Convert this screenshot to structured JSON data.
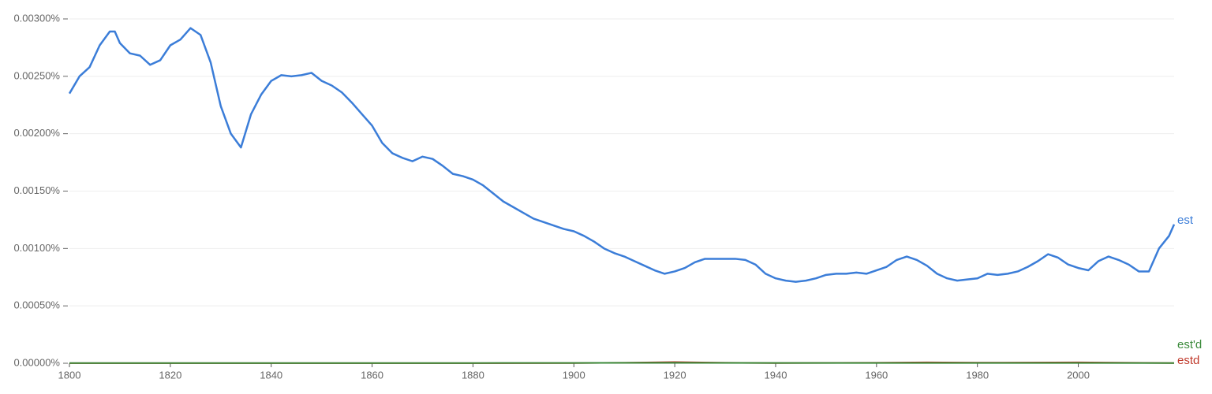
{
  "chart_data": {
    "type": "line",
    "xlim": [
      1800,
      2019
    ],
    "xticks": [
      1800,
      1820,
      1840,
      1860,
      1880,
      1900,
      1920,
      1940,
      1960,
      1980,
      2000
    ],
    "ylim": [
      0,
      0.003
    ],
    "yticks": [
      {
        "value": 0,
        "label": "0.00000%"
      },
      {
        "value": 0.0005,
        "label": "0.00050%"
      },
      {
        "value": 0.001,
        "label": "0.00100%"
      },
      {
        "value": 0.0015,
        "label": "0.00150%"
      },
      {
        "value": 0.002,
        "label": "0.00200%"
      },
      {
        "value": 0.0025,
        "label": "0.00250%"
      },
      {
        "value": 0.003,
        "label": "0.00300%"
      }
    ],
    "grid": true,
    "series": [
      {
        "name": "est",
        "color": "#3b7dd8",
        "x": [
          1800,
          1802,
          1804,
          1806,
          1808,
          1809,
          1810,
          1812,
          1814,
          1816,
          1818,
          1820,
          1822,
          1824,
          1826,
          1828,
          1830,
          1832,
          1834,
          1836,
          1838,
          1840,
          1842,
          1844,
          1846,
          1848,
          1850,
          1852,
          1854,
          1856,
          1858,
          1860,
          1862,
          1864,
          1866,
          1868,
          1870,
          1872,
          1874,
          1876,
          1878,
          1880,
          1882,
          1884,
          1886,
          1888,
          1890,
          1892,
          1894,
          1896,
          1898,
          1900,
          1902,
          1904,
          1906,
          1908,
          1910,
          1912,
          1914,
          1916,
          1918,
          1920,
          1922,
          1924,
          1926,
          1928,
          1930,
          1932,
          1934,
          1936,
          1938,
          1940,
          1942,
          1944,
          1946,
          1948,
          1950,
          1952,
          1954,
          1956,
          1958,
          1960,
          1962,
          1964,
          1966,
          1968,
          1970,
          1972,
          1974,
          1976,
          1978,
          1980,
          1982,
          1984,
          1986,
          1988,
          1990,
          1992,
          1994,
          1996,
          1998,
          2000,
          2002,
          2004,
          2006,
          2008,
          2010,
          2012,
          2014,
          2016,
          2018,
          2019
        ],
        "values": [
          0.00235,
          0.0025,
          0.00258,
          0.00277,
          0.00289,
          0.00289,
          0.00279,
          0.0027,
          0.00268,
          0.0026,
          0.00264,
          0.00277,
          0.00282,
          0.00292,
          0.00286,
          0.00262,
          0.00224,
          0.002,
          0.00188,
          0.00217,
          0.00234,
          0.00246,
          0.00251,
          0.0025,
          0.00251,
          0.00253,
          0.00246,
          0.00242,
          0.00236,
          0.00227,
          0.00217,
          0.00207,
          0.00192,
          0.00183,
          0.00179,
          0.00176,
          0.0018,
          0.00178,
          0.00172,
          0.00165,
          0.00163,
          0.0016,
          0.00155,
          0.00148,
          0.00141,
          0.00136,
          0.00131,
          0.00126,
          0.00123,
          0.0012,
          0.00117,
          0.00115,
          0.00111,
          0.00106,
          0.001,
          0.00096,
          0.00093,
          0.00089,
          0.00085,
          0.00081,
          0.00078,
          0.0008,
          0.00083,
          0.00088,
          0.00091,
          0.00091,
          0.00091,
          0.00091,
          0.0009,
          0.00086,
          0.00078,
          0.00074,
          0.00072,
          0.00071,
          0.00072,
          0.00074,
          0.00077,
          0.00078,
          0.00078,
          0.00079,
          0.00078,
          0.00081,
          0.00084,
          0.0009,
          0.00093,
          0.0009,
          0.00085,
          0.00078,
          0.00074,
          0.00072,
          0.00073,
          0.00074,
          0.00078,
          0.00077,
          0.00078,
          0.0008,
          0.00084,
          0.00089,
          0.00095,
          0.00092,
          0.00086,
          0.00083,
          0.00081,
          0.00089,
          0.00093,
          0.0009,
          0.00086,
          0.0008,
          0.0008,
          0.001,
          0.00111,
          0.00121
        ]
      },
      {
        "name": "est'd",
        "color": "#3a8a3a",
        "x": [
          1800,
          1820,
          1840,
          1860,
          1880,
          1900,
          1920,
          1940,
          1960,
          1980,
          2000,
          2019
        ],
        "values": [
          2e-06,
          2e-06,
          2e-06,
          2e-06,
          2e-06,
          3e-06,
          4e-06,
          3e-06,
          3e-06,
          3e-06,
          3e-06,
          2e-06
        ]
      },
      {
        "name": "estd",
        "color": "#c0392b",
        "x": [
          1800,
          1820,
          1840,
          1860,
          1880,
          1900,
          1910,
          1920,
          1930,
          1940,
          1960,
          1970,
          1980,
          1990,
          2000,
          2010,
          2019
        ],
        "values": [
          1e-06,
          1e-06,
          1e-06,
          1e-06,
          1e-06,
          2e-06,
          4e-06,
          1e-05,
          4e-06,
          2e-06,
          4e-06,
          8e-06,
          5e-06,
          6e-06,
          8e-06,
          4e-06,
          2e-06
        ]
      }
    ]
  }
}
